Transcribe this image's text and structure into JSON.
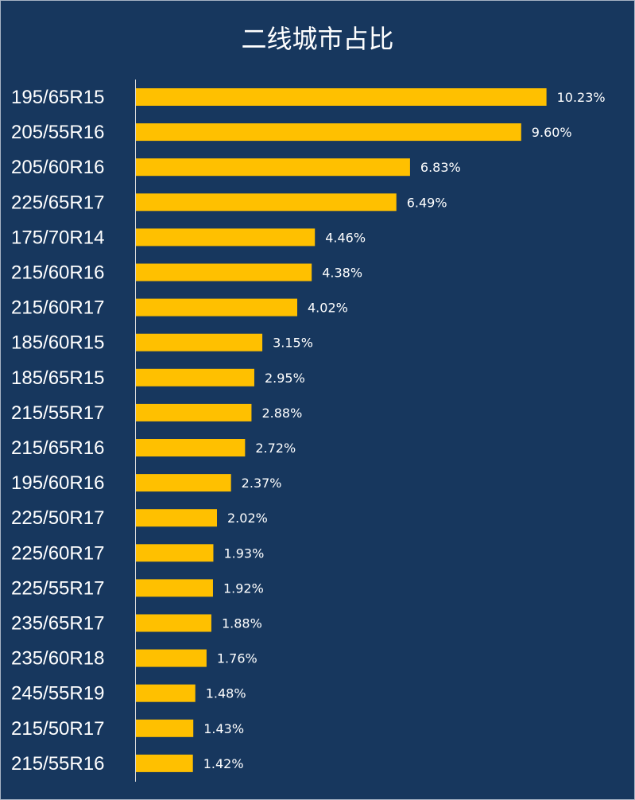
{
  "chart_data": {
    "type": "bar",
    "orientation": "horizontal",
    "title": "二线城市占比",
    "categories": [
      "195/65R15",
      "205/55R16",
      "205/60R16",
      "225/65R17",
      "175/70R14",
      "215/60R16",
      "215/60R17",
      "185/60R15",
      "185/65R15",
      "215/55R17",
      "215/65R16",
      "195/60R16",
      "225/50R17",
      "225/60R17",
      "225/55R17",
      "235/65R17",
      "235/60R18",
      "245/55R19",
      "215/50R17",
      "215/55R16"
    ],
    "values": [
      10.23,
      9.6,
      6.83,
      6.49,
      4.46,
      4.38,
      4.02,
      3.15,
      2.95,
      2.88,
      2.72,
      2.37,
      2.02,
      1.93,
      1.92,
      1.88,
      1.76,
      1.48,
      1.43,
      1.42
    ],
    "value_labels": [
      "10.23%",
      "9.60%",
      "6.83%",
      "6.49%",
      "4.46%",
      "4.38%",
      "4.02%",
      "3.15%",
      "2.95%",
      "2.88%",
      "2.72%",
      "2.37%",
      "2.02%",
      "1.93%",
      "1.92%",
      "1.88%",
      "1.76%",
      "1.48%",
      "1.43%",
      "1.42%"
    ],
    "bar_color": "#ffc000",
    "background_color": "#17375e",
    "axis_color": "#d9d9d9",
    "text_color": "#ffffff",
    "grid": false,
    "legend": "none"
  }
}
